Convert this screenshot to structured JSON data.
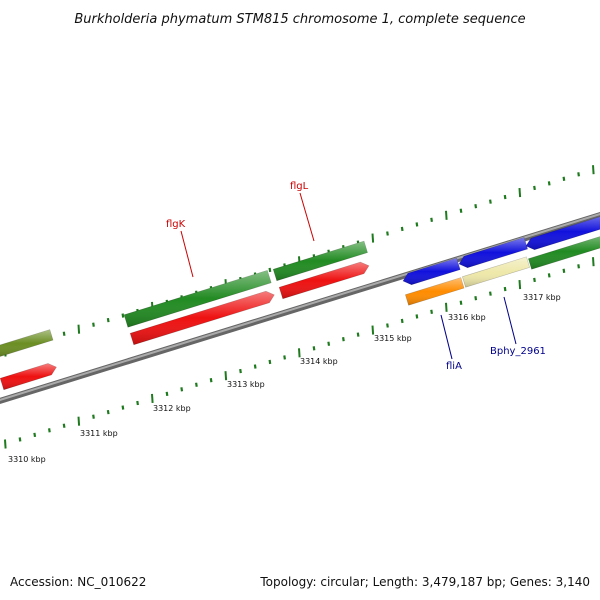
{
  "title": "Burkholderia phymatum STM815 chromosome 1, complete sequence",
  "footer": {
    "accession": "Accession: NC_010622",
    "summary": "Topology: circular; Length: 3,479,187 bp; Genes: 3,140"
  },
  "colors": {
    "tick": "#1f7a1f",
    "backbone": "#888888",
    "label_red": "#cc0000",
    "label_blue": "#00008b",
    "olive": "#6b8e23",
    "green": "#228b22",
    "red": "#ee1111",
    "blue": "#1111dd",
    "orange": "#ff8c00",
    "khaki": "#eee8aa"
  },
  "scale_labels": [
    "3310 kbp",
    "3311 kbp",
    "3312 kbp",
    "3313 kbp",
    "3314 kbp",
    "3315 kbp",
    "3316 kbp",
    "3317 kbp"
  ],
  "gene_labels": [
    {
      "text": "flgK",
      "color": "label_red"
    },
    {
      "text": "flgL",
      "color": "label_red"
    },
    {
      "text": "fliA",
      "color": "label_blue"
    },
    {
      "text": "Bphy_2961",
      "color": "label_blue"
    }
  ]
}
